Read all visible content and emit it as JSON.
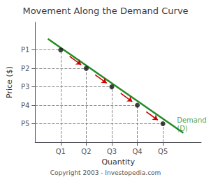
{
  "chart_data": {
    "type": "line",
    "title": "Movement Along the Demand Curve",
    "xlabel": "Quantity",
    "ylabel": "Price ($)",
    "xlim": [
      0.0,
      6.5
    ],
    "ylim": [
      0.0,
      6.5
    ],
    "xticks": [
      {
        "value": 1.0,
        "label": "Q1"
      },
      {
        "value": 2.0,
        "label": "Q2"
      },
      {
        "value": 3.0,
        "label": "Q3"
      },
      {
        "value": 4.0,
        "label": "Q4"
      },
      {
        "value": 5.0,
        "label": "Q5"
      }
    ],
    "yticks": [
      {
        "value": 5.0,
        "label": "P1"
      },
      {
        "value": 4.0,
        "label": "P2"
      },
      {
        "value": 3.0,
        "label": "P3"
      },
      {
        "value": 2.0,
        "label": "P4"
      },
      {
        "value": 1.0,
        "label": "P5"
      }
    ],
    "grid": false,
    "legend": false,
    "series": [
      {
        "type": "line",
        "color": "#228B22",
        "x": [
          0.5,
          5.8
        ],
        "values": [
          5.6,
          0.5
        ]
      },
      {
        "type": "scatter",
        "color": "#111111",
        "x": [
          1.0,
          2.0,
          3.0,
          4.0,
          5.0
        ],
        "values": [
          5.0,
          4.0,
          3.0,
          2.0,
          1.0
        ]
      },
      {
        "type": "arrows",
        "color": "#cc0000",
        "x": [
          1.35,
          2.35,
          3.35,
          4.35
        ],
        "values": [
          4.65,
          3.65,
          2.65,
          1.65
        ],
        "dx": [
          0.45,
          0.45,
          0.45,
          0.45
        ],
        "dy": [
          -0.45,
          -0.45,
          -0.45,
          -0.45
        ]
      }
    ],
    "annotations": [
      {
        "text": "Demand\n(D)",
        "x": 5.55,
        "y": 0.5
      },
      {
        "text": "Copyright 2003 - Investopedia.com"
      }
    ]
  }
}
